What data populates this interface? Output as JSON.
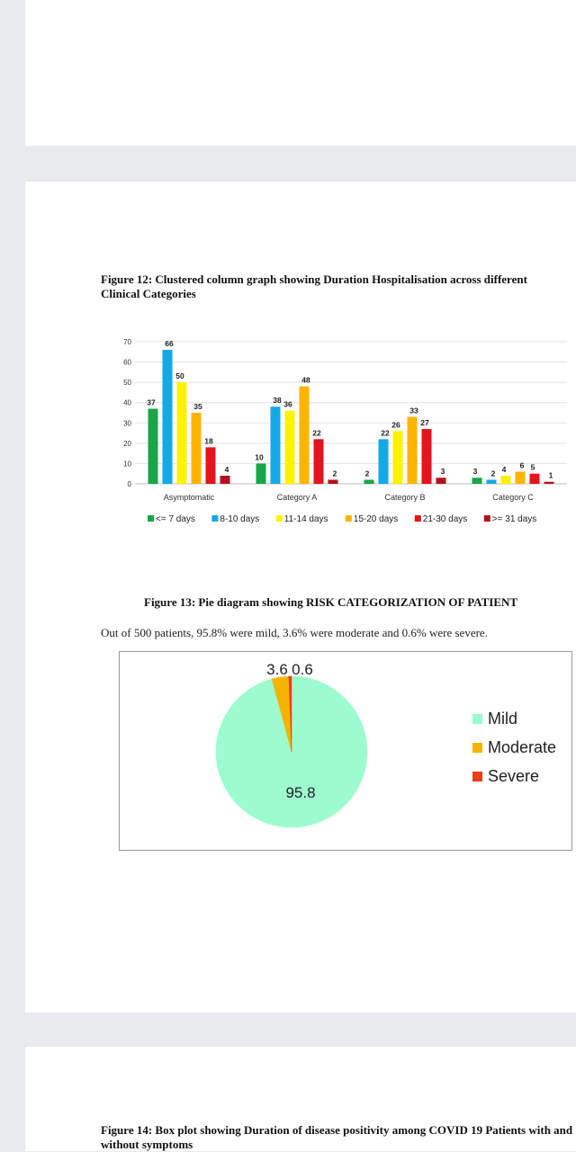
{
  "figure12": {
    "caption": "Figure 12: Clustered column graph showing Duration Hospitalisation across different Clinical Categories"
  },
  "figure13": {
    "caption": "Figure 13: Pie diagram showing RISK CATEGORIZATION OF PATIENT",
    "description": "Out of 500 patients, 95.8% were mild, 3.6% were moderate and 0.6% were severe."
  },
  "figure14": {
    "caption": "Figure 14: Box plot showing Duration of disease positivity among COVID 19 Patients with and without symptoms"
  },
  "chart_data": [
    {
      "type": "bar",
      "title": "",
      "xlabel": "",
      "ylabel": "",
      "ylim": [
        0,
        70
      ],
      "yticks": [
        0,
        10,
        20,
        30,
        40,
        50,
        60,
        70
      ],
      "grid": true,
      "legend_position": "bottom",
      "categories": [
        "Asymptomatic",
        "Category A",
        "Category B",
        "Category C"
      ],
      "series": [
        {
          "name": "<= 7 days",
          "color": "#1aa54a",
          "values": [
            37,
            10,
            2,
            3
          ]
        },
        {
          "name": "8-10 days",
          "color": "#14a9e6",
          "values": [
            66,
            38,
            22,
            2
          ]
        },
        {
          "name": "11-14 days",
          "color": "#fff200",
          "values": [
            50,
            36,
            26,
            4
          ]
        },
        {
          "name": "15-20 days",
          "color": "#ffb400",
          "values": [
            35,
            48,
            33,
            6
          ]
        },
        {
          "name": "21-30 days",
          "color": "#e5141d",
          "values": [
            18,
            22,
            27,
            5
          ]
        },
        {
          "name": ">= 31 days",
          "color": "#b3121c",
          "values": [
            4,
            2,
            3,
            1
          ]
        }
      ]
    },
    {
      "type": "pie",
      "title": "",
      "legend_position": "right",
      "slices": [
        {
          "name": "Mild",
          "value": 95.8,
          "color": "#9dfccf"
        },
        {
          "name": "Moderate",
          "value": 3.6,
          "color": "#f5b400"
        },
        {
          "name": "Severe",
          "value": 0.6,
          "color": "#e8401c"
        }
      ]
    }
  ]
}
